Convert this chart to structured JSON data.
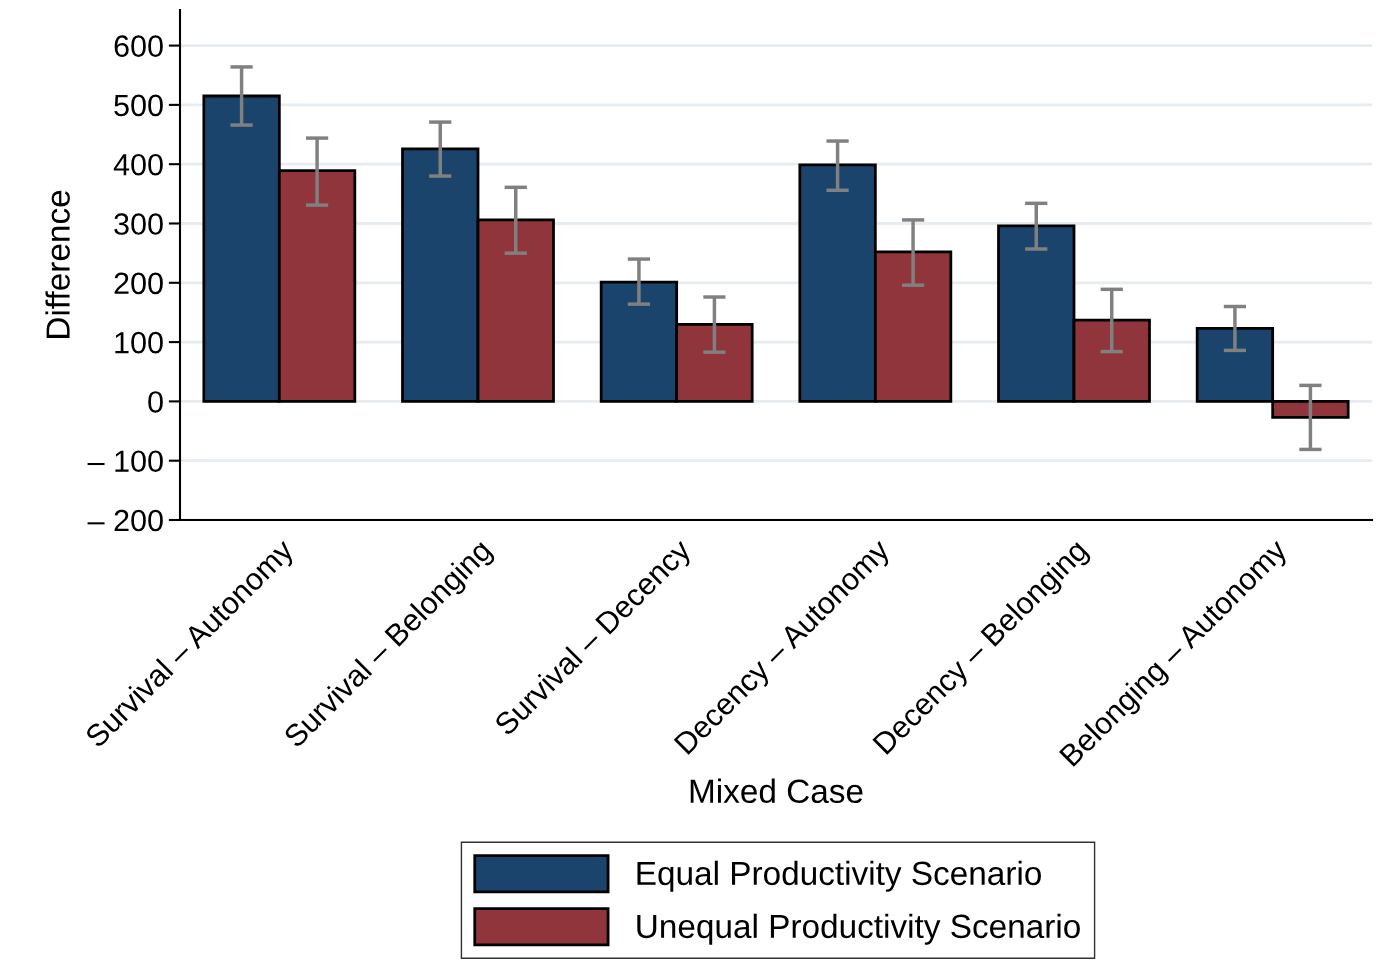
{
  "chart_data": {
    "type": "bar",
    "xlabel": "Mixed Case",
    "ylabel": "Difference",
    "categories": [
      "Survival – Autonomy",
      "Survival – Belonging",
      "Survival – Decency",
      "Decency – Autonomy",
      "Decency – Belonging",
      "Belonging – Autonomy"
    ],
    "series": [
      {
        "name": "Equal Productivity Scenario",
        "color": "#1a446b",
        "values": [
          515,
          426,
          201,
          399,
          296,
          123
        ],
        "errors": [
          [
            466,
            564
          ],
          [
            380,
            471
          ],
          [
            164,
            240
          ],
          [
            356,
            439
          ],
          [
            257,
            334
          ],
          [
            86,
            160
          ]
        ]
      },
      {
        "name": "Unequal Productivity Scenario",
        "color": "#90353b",
        "values": [
          389,
          306,
          130,
          252,
          137,
          -27
        ],
        "errors": [
          [
            331,
            444
          ],
          [
            250,
            361
          ],
          [
            83,
            176
          ],
          [
            196,
            306
          ],
          [
            84,
            189
          ],
          [
            -81,
            27
          ]
        ]
      }
    ],
    "ylim": [
      -200,
      660
    ],
    "yticks": [
      {
        "value": -200,
        "label": "– 200"
      },
      {
        "value": -100,
        "label": "– 100"
      },
      0,
      100,
      200,
      300,
      400,
      500,
      600
    ],
    "grid": "y",
    "legend": "bottom"
  }
}
